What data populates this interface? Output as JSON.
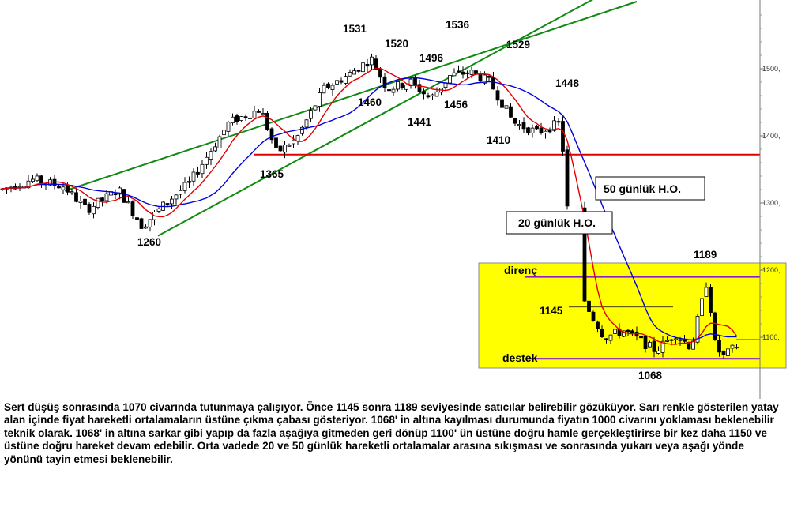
{
  "chart_data": {
    "type": "candlestick",
    "y_scale": "linear",
    "ylim": [
      1030,
      1640
    ],
    "y_ticks": [
      {
        "value": 1500,
        "label": "1500,"
      },
      {
        "value": 1400,
        "label": "1400,"
      },
      {
        "value": 1300,
        "label": "1300,"
      },
      {
        "value": 1200,
        "label": "1200,"
      },
      {
        "value": 1100,
        "label": "1100,"
      }
    ],
    "grid": false,
    "legend": "none",
    "colors": {
      "up_candle": "#ffffff",
      "down_candle": "#000000",
      "ma20": "#e00000",
      "ma50": "#0000dd",
      "channel": "#108a10",
      "support_line": "#e00000",
      "range_box": "#ffff00",
      "range_lines": "#8a1ecc"
    },
    "series": [
      {
        "name": "20 günlük H.O."
      },
      {
        "name": "50 günlük H.O."
      }
    ],
    "annotations": {
      "price_labels": [
        {
          "text": "1531",
          "value": 1531
        },
        {
          "text": "1536",
          "value": 1536
        },
        {
          "text": "1520",
          "value": 1520
        },
        {
          "text": "1496",
          "value": 1496
        },
        {
          "text": "1529",
          "value": 1529
        },
        {
          "text": "1460",
          "value": 1460
        },
        {
          "text": "1456",
          "value": 1456
        },
        {
          "text": "1441",
          "value": 1441
        },
        {
          "text": "1448",
          "value": 1448
        },
        {
          "text": "1410",
          "value": 1410
        },
        {
          "text": "1365",
          "value": 1365
        },
        {
          "text": "1260",
          "value": 1260
        },
        {
          "text": "1189",
          "value": 1189
        },
        {
          "text": "1145",
          "value": 1145
        },
        {
          "text": "1068",
          "value": 1068
        }
      ],
      "resistance_label": "direnç",
      "support_label": "destek",
      "ma50_box_label": "50 günlük H.O.",
      "ma20_box_label": "20 günlük H.O.",
      "horizontal_support_level": 1372,
      "range_resistance": 1190,
      "range_support": 1068
    }
  },
  "commentary": "Sert düşüş sonrasında 1070 civarında tutunmaya çalışıyor.  Önce 1145 sonra 1189 seviyesinde satıcılar belirebilir gözüküyor. Sarı renkle gösterilen yatay alan içinde fiyat hareketli ortalamaların üstüne çıkma çabası gösteriyor. 1068' in altına kayılması durumunda fiyatın 1000 civarını yoklaması beklenebilir teknik olarak. 1068' in altına sarkar gibi yapıp da fazla aşağıya gitmeden geri dönüp 1100' ün üstüne doğru hamle gerçekleştirirse bir kez daha 1150 ve üstüne doğru hareket devam edebilir. Orta vadede 20 ve 50 günlük hareketli ortalamalar arasına sıkışması ve sonrasında yukarı veya aşağı yönde yönünü tayin etmesi beklenebilir."
}
